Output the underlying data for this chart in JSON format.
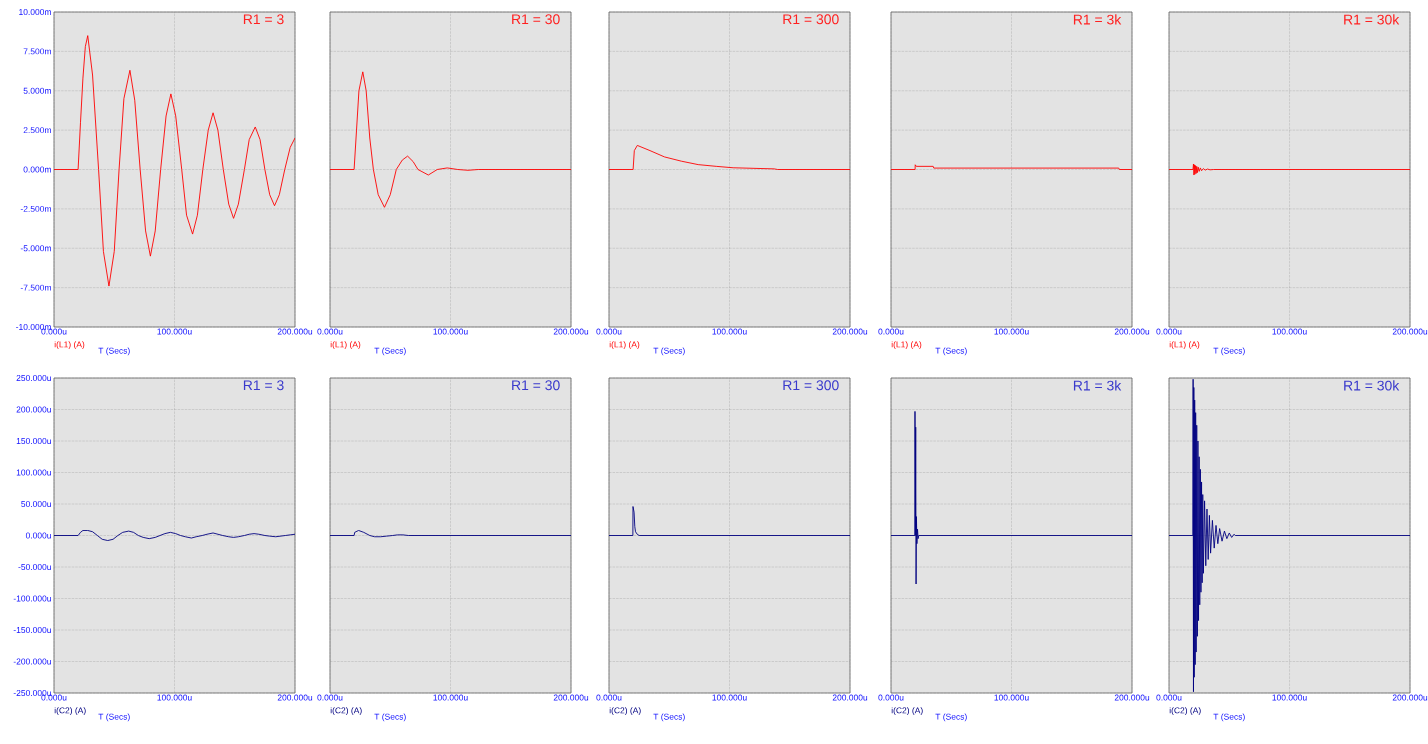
{
  "chart_data": [
    {
      "type": "line",
      "title": "R1 = 3",
      "xlabel": "T (Secs)",
      "xlim": [
        0,
        200
      ],
      "xticks": [
        {
          "value": 0,
          "label": "0.000u"
        },
        {
          "value": 100,
          "label": "100.000u"
        },
        {
          "value": 200,
          "label": "200.000u"
        }
      ],
      "ylim": [
        -10,
        10
      ],
      "yticks": [
        {
          "value": -10,
          "label": "-10.000m"
        },
        {
          "value": -7.5,
          "label": "-7.500m"
        },
        {
          "value": -5,
          "label": "-5.000m"
        },
        {
          "value": -2.5,
          "label": "-2.500m"
        },
        {
          "value": 0,
          "label": "0.000m"
        },
        {
          "value": 2.5,
          "label": "2.500m"
        },
        {
          "value": 5,
          "label": "5.000m"
        },
        {
          "value": 7.5,
          "label": "7.500m"
        },
        {
          "value": 10,
          "label": "10.000m"
        }
      ],
      "grid": true,
      "series": [
        {
          "name": "i(L1) (A)",
          "color": "#ff0000",
          "x": [
            0,
            20,
            22,
            24,
            26,
            28,
            32,
            37,
            41,
            45.6,
            50,
            54,
            58,
            63,
            67,
            71.5,
            76,
            80,
            84,
            88.5,
            93,
            97,
            101,
            106,
            110,
            115,
            119,
            123.5,
            128,
            132,
            136,
            140.5,
            145,
            149,
            153,
            158,
            162,
            167,
            171,
            175,
            179,
            183,
            187,
            191.5,
            196,
            200
          ],
          "values": [
            0,
            0,
            3.0,
            5.8,
            7.8,
            8.5,
            6.0,
            0,
            -5.2,
            -7.4,
            -5.2,
            0,
            4.5,
            6.3,
            4.4,
            0,
            -3.9,
            -5.5,
            -3.9,
            0,
            3.4,
            4.8,
            3.4,
            0,
            -2.9,
            -4.1,
            -2.9,
            0,
            2.5,
            3.6,
            2.5,
            0,
            -2.2,
            -3.1,
            -2.2,
            0,
            1.9,
            2.7,
            1.9,
            0,
            -1.6,
            -2.3,
            -1.6,
            0,
            1.4,
            2.0
          ]
        }
      ]
    },
    {
      "type": "line",
      "title": "R1 = 30",
      "xlabel": "T (Secs)",
      "xlim": [
        0,
        200
      ],
      "xticks": [
        {
          "value": 0,
          "label": "0.000u"
        },
        {
          "value": 100,
          "label": "100.000u"
        },
        {
          "value": 200,
          "label": "200.000u"
        }
      ],
      "ylim": [
        -10,
        10
      ],
      "yticks": [
        -10,
        -7.5,
        -5,
        -2.5,
        0,
        2.5,
        5,
        7.5,
        10
      ],
      "grid": true,
      "tick_labels": "x",
      "series": [
        {
          "name": "i(L1) (A)",
          "color": "#ff0000",
          "x": [
            0,
            20,
            22,
            24,
            27.2,
            30,
            33,
            36,
            40,
            45.2,
            50,
            55,
            60,
            64.4,
            69,
            73,
            81.6,
            89,
            97.3,
            106,
            114.5,
            123,
            200
          ],
          "values": [
            0,
            0,
            2.5,
            5,
            6.2,
            5,
            2,
            0,
            -1.6,
            -2.4,
            -1.6,
            0,
            0.6,
            0.85,
            0.5,
            0,
            -0.35,
            0,
            0.1,
            0,
            -0.05,
            0,
            0
          ]
        }
      ]
    },
    {
      "type": "line",
      "title": "R1 = 300",
      "xlabel": "T (Secs)",
      "xlim": [
        0,
        200
      ],
      "xticks": [
        {
          "value": 0,
          "label": "0.000u"
        },
        {
          "value": 100,
          "label": "100.000u"
        },
        {
          "value": 200,
          "label": "200.000u"
        }
      ],
      "ylim": [
        -10,
        10
      ],
      "yticks": [
        -10,
        -7.5,
        -5,
        -2.5,
        0,
        2.5,
        5,
        7.5,
        10
      ],
      "grid": true,
      "tick_labels": "x",
      "series": [
        {
          "name": "i(L1) (A)",
          "color": "#ff0000",
          "x": [
            0,
            20,
            21,
            23.5,
            34,
            46,
            60,
            74,
            89,
            103,
            137,
            140,
            200
          ],
          "values": [
            0,
            0,
            1.2,
            1.53,
            1.2,
            0.8,
            0.53,
            0.31,
            0.2,
            0.11,
            0.04,
            0,
            0
          ]
        }
      ]
    },
    {
      "type": "line",
      "title": "R1 = 3k",
      "xlabel": "T (Secs)",
      "xlim": [
        0,
        200
      ],
      "xticks": [
        {
          "value": 0,
          "label": "0.000u"
        },
        {
          "value": 100,
          "label": "100.000u"
        },
        {
          "value": 200,
          "label": "200.000u"
        }
      ],
      "ylim": [
        -10,
        10
      ],
      "yticks": [
        -10,
        -7.5,
        -5,
        -2.5,
        0,
        2.5,
        5,
        7.5,
        10
      ],
      "grid": true,
      "tick_labels": "x",
      "series": [
        {
          "name": "i(L1) (A)",
          "color": "#ff0000",
          "x": [
            0,
            20,
            20.1,
            21,
            35,
            35.5,
            189,
            189.5,
            200
          ],
          "values": [
            0,
            0,
            0.3,
            0.2,
            0.2,
            0.09,
            0.09,
            0,
            0
          ]
        }
      ]
    },
    {
      "type": "line",
      "title": "R1 = 30k",
      "xlabel": "T (Secs)",
      "xlim": [
        0,
        200
      ],
      "xticks": [
        {
          "value": 0,
          "label": "0.000u"
        },
        {
          "value": 100,
          "label": "100.000u"
        },
        {
          "value": 200,
          "label": "200.000u"
        }
      ],
      "ylim": [
        -10,
        10
      ],
      "yticks": [
        -10,
        -7.5,
        -5,
        -2.5,
        0,
        2.5,
        5,
        7.5,
        10
      ],
      "grid": true,
      "tick_labels": "x",
      "series": [
        {
          "name": "i(L1) (A)",
          "color": "#ff0000",
          "x": [
            0,
            19.9,
            20.3,
            20.7,
            21.1,
            21.5,
            22,
            22.5,
            23,
            23.5,
            24.2,
            25,
            26,
            27,
            28.5,
            30,
            32,
            34,
            37,
            200
          ],
          "values": [
            0,
            0,
            0.35,
            -0.35,
            0.3,
            -0.3,
            0.25,
            -0.25,
            0.2,
            -0.2,
            0.15,
            -0.12,
            0.1,
            -0.08,
            0.06,
            -0.04,
            0.03,
            -0.02,
            0,
            0
          ]
        }
      ]
    },
    {
      "type": "line",
      "title": "R1 = 3",
      "xlabel": "T (Secs)",
      "xlim": [
        0,
        200
      ],
      "xticks": [
        {
          "value": 0,
          "label": "0.000u"
        },
        {
          "value": 100,
          "label": "100.000u"
        },
        {
          "value": 200,
          "label": "200.000u"
        }
      ],
      "ylim": [
        -250,
        250
      ],
      "yticks": [
        {
          "value": -250,
          "label": "-250.000u"
        },
        {
          "value": -200,
          "label": "-200.000u"
        },
        {
          "value": -150,
          "label": "-150.000u"
        },
        {
          "value": -100,
          "label": "-100.000u"
        },
        {
          "value": -50,
          "label": "-50.000u"
        },
        {
          "value": 0,
          "label": "0.000u"
        },
        {
          "value": 50,
          "label": "50.000u"
        },
        {
          "value": 100,
          "label": "100.000u"
        },
        {
          "value": 150,
          "label": "150.000u"
        },
        {
          "value": 200,
          "label": "200.000u"
        },
        {
          "value": 250,
          "label": "250.000u"
        }
      ],
      "grid": true,
      "series": [
        {
          "name": "i(C2) (A)",
          "color": "#000080",
          "x": [
            0,
            20,
            22,
            24,
            28,
            32,
            36,
            40,
            44.6,
            49,
            53,
            57,
            62,
            66,
            70,
            74,
            79,
            84,
            88,
            92,
            96.6,
            101,
            105,
            109,
            114,
            118,
            123,
            127,
            132,
            136,
            140,
            145,
            149,
            153,
            158,
            162,
            166,
            170,
            175,
            179,
            184,
            188,
            192,
            196,
            200
          ],
          "values": [
            0,
            0,
            5,
            8,
            8,
            6,
            0,
            -6,
            -8,
            -6,
            0,
            5,
            7,
            5,
            0,
            -3,
            -5,
            -3,
            0,
            3,
            5,
            3,
            0,
            -2,
            -4,
            -2,
            0,
            2,
            4,
            2,
            0,
            -2,
            -3,
            -2,
            0,
            2,
            3,
            2,
            0,
            -1,
            -2,
            -1,
            0,
            1,
            2
          ]
        }
      ]
    },
    {
      "type": "line",
      "title": "R1 = 30",
      "xlabel": "T (Secs)",
      "xlim": [
        0,
        200
      ],
      "xticks": [
        {
          "value": 0,
          "label": "0.000u"
        },
        {
          "value": 100,
          "label": "100.000u"
        },
        {
          "value": 200,
          "label": "200.000u"
        }
      ],
      "ylim": [
        -250,
        250
      ],
      "yticks": [
        -250,
        -200,
        -150,
        -100,
        -50,
        0,
        50,
        100,
        150,
        200,
        250
      ],
      "grid": true,
      "tick_labels": "x",
      "series": [
        {
          "name": "i(C2) (A)",
          "color": "#000080",
          "x": [
            0,
            20,
            20.5,
            23.7,
            28,
            33,
            37,
            42,
            47,
            52,
            56,
            60.5,
            65,
            200
          ],
          "values": [
            0,
            0,
            5,
            8,
            5,
            0,
            -2,
            -2,
            -1,
            0,
            1,
            1,
            0,
            0
          ]
        }
      ]
    },
    {
      "type": "line",
      "title": "R1 = 300",
      "xlabel": "T (Secs)",
      "xlim": [
        0,
        200
      ],
      "xticks": [
        {
          "value": 0,
          "label": "0.000u"
        },
        {
          "value": 100,
          "label": "100.000u"
        },
        {
          "value": 200,
          "label": "200.000u"
        }
      ],
      "ylim": [
        -250,
        250
      ],
      "yticks": [
        -250,
        -200,
        -150,
        -100,
        -50,
        0,
        50,
        100,
        150,
        200,
        250
      ],
      "grid": true,
      "tick_labels": "x",
      "series": [
        {
          "name": "i(C2) (A)",
          "color": "#000080",
          "x": [
            0,
            19.8,
            19.9,
            20.8,
            21.4,
            22,
            23.4,
            25,
            200
          ],
          "values": [
            0,
            0,
            46,
            37,
            14,
            6,
            2,
            0,
            0
          ]
        }
      ]
    },
    {
      "type": "line",
      "title": "R1 = 3k",
      "xlabel": "T (Secs)",
      "xlim": [
        0,
        200
      ],
      "xticks": [
        {
          "value": 0,
          "label": "0.000u"
        },
        {
          "value": 100,
          "label": "100.000u"
        },
        {
          "value": 200,
          "label": "200.000u"
        }
      ],
      "ylim": [
        -250,
        250
      ],
      "yticks": [
        -250,
        -200,
        -150,
        -100,
        -50,
        0,
        50,
        100,
        150,
        200,
        250
      ],
      "grid": true,
      "tick_labels": "x",
      "series": [
        {
          "name": "i(C2) (A)",
          "color": "#000080",
          "x": [
            0,
            19.8,
            19.9,
            20.2,
            20.5,
            20.8,
            21.1,
            21.5,
            22,
            22.5,
            23,
            200
          ],
          "values": [
            0,
            0,
            197,
            0,
            172,
            -77,
            30,
            -13,
            10,
            -5,
            0,
            0
          ]
        }
      ]
    },
    {
      "type": "line",
      "title": "R1 = 30k",
      "xlabel": "T (Secs)",
      "xlim": [
        0,
        200
      ],
      "xticks": [
        {
          "value": 0,
          "label": "0.000u"
        },
        {
          "value": 100,
          "label": "100.000u"
        },
        {
          "value": 200,
          "label": "200.000u"
        }
      ],
      "ylim": [
        -250,
        250
      ],
      "yticks": [
        -250,
        -200,
        -150,
        -100,
        -50,
        0,
        50,
        100,
        150,
        200,
        250
      ],
      "grid": true,
      "tick_labels": "x",
      "series": [
        {
          "name": "i(C2) (A)",
          "color": "#000080",
          "x": [
            0,
            19.8,
            20,
            20.3,
            20.6,
            20.9,
            21.3,
            21.7,
            22.1,
            22.5,
            23,
            23.5,
            24,
            24.5,
            25,
            25.5,
            26,
            26.5,
            27,
            27.5,
            28,
            28.5,
            29.5,
            30.5,
            31.5,
            32.5,
            33.5,
            34.5,
            36,
            37.5,
            39,
            40.5,
            42,
            44,
            46,
            48,
            50,
            52,
            54,
            55,
            200
          ],
          "values": [
            0,
            0,
            248,
            -248,
            235,
            -225,
            215,
            -205,
            195,
            -185,
            175,
            -160,
            150,
            -135,
            125,
            -110,
            105,
            -90,
            85,
            -75,
            65,
            -60,
            55,
            -48,
            42,
            -38,
            32,
            -28,
            24,
            -20,
            16,
            -13,
            11,
            -9,
            7,
            -5,
            4,
            -3,
            2,
            0,
            0
          ]
        }
      ]
    }
  ]
}
